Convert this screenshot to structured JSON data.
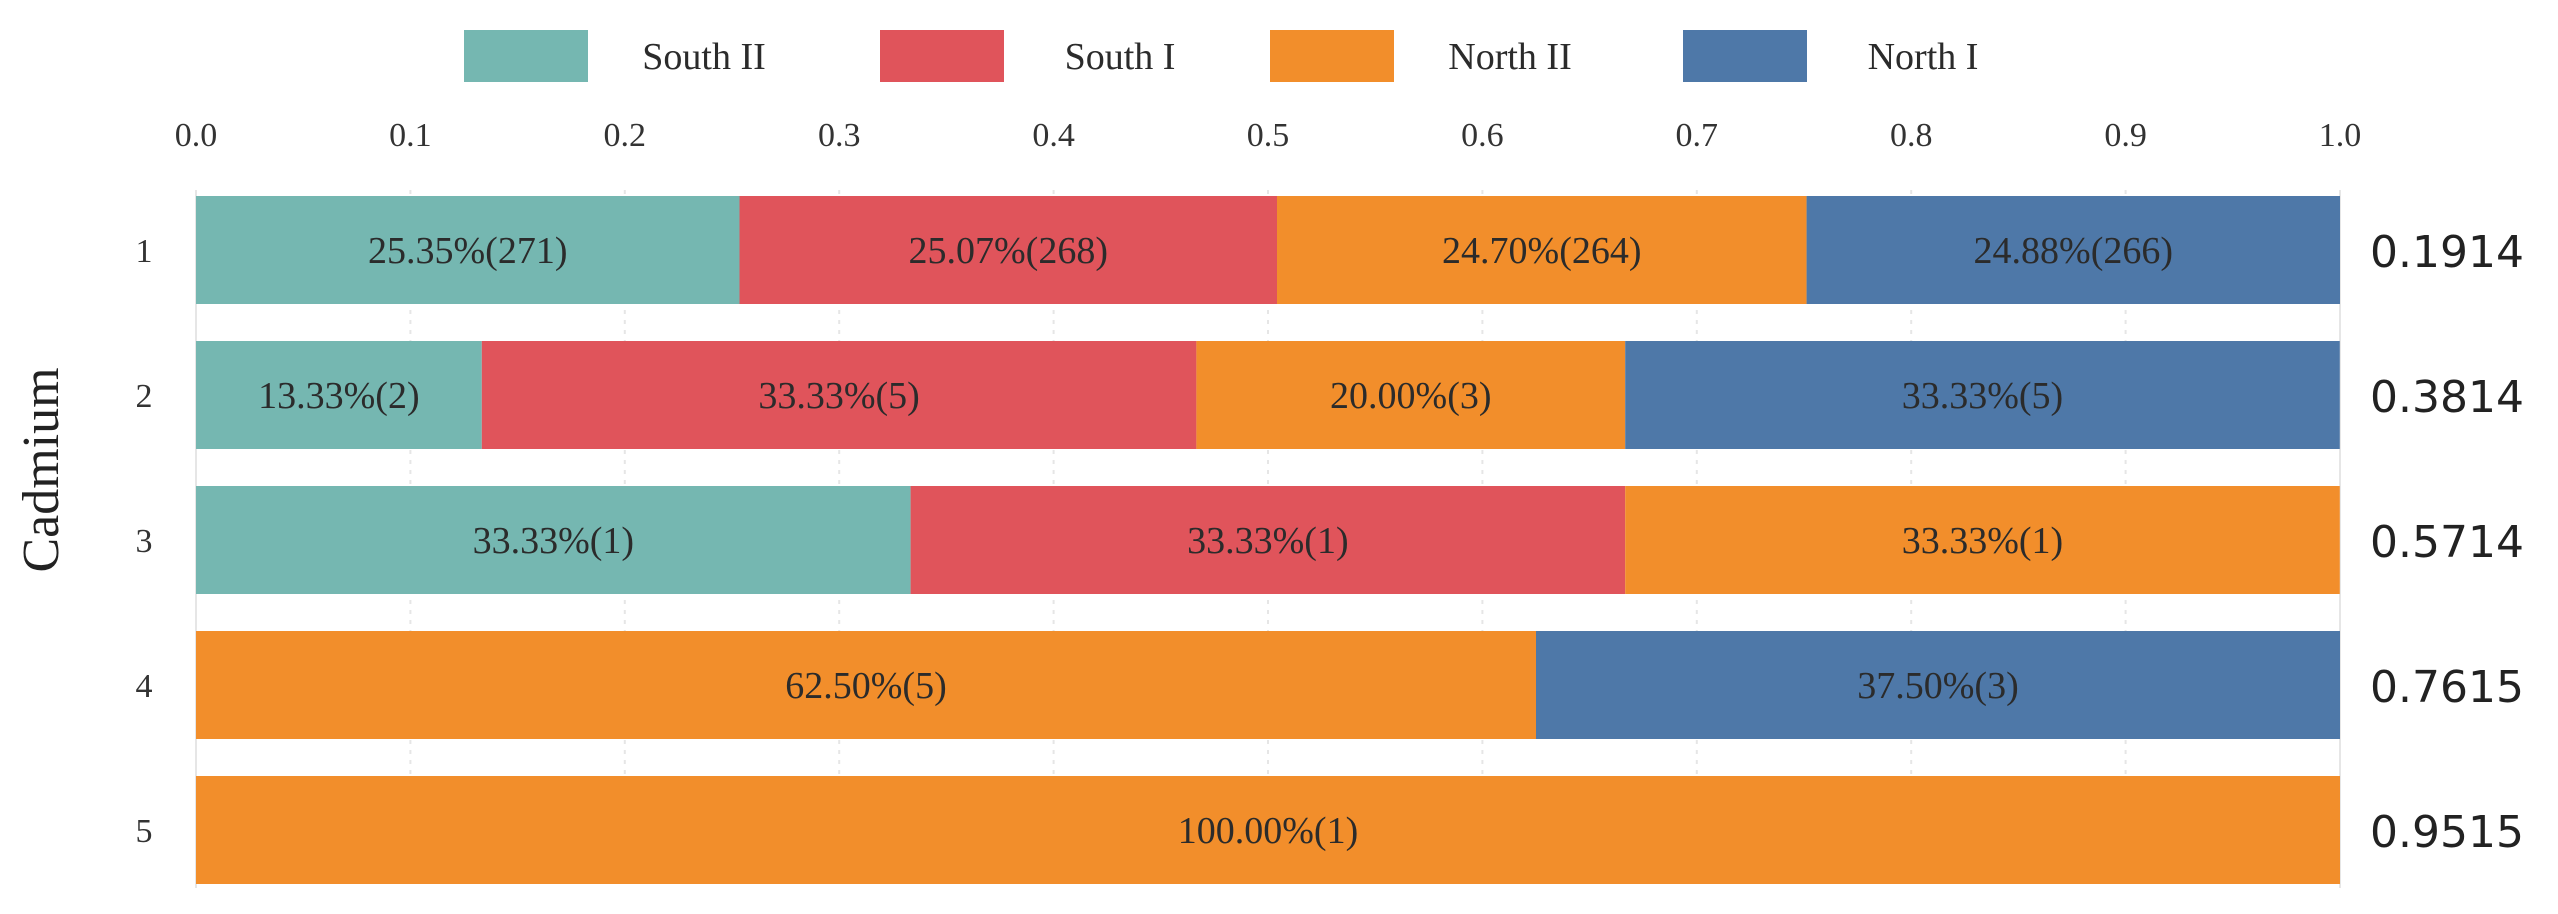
{
  "chart_data": {
    "type": "bar",
    "orientation": "horizontal",
    "stacked": true,
    "ylabel": "Cadmium",
    "categories": [
      "1",
      "2",
      "3",
      "4",
      "5"
    ],
    "x_ticks": [
      "0.0",
      "0.1",
      "0.2",
      "0.3",
      "0.4",
      "0.5",
      "0.6",
      "0.7",
      "0.8",
      "0.9",
      "1.0"
    ],
    "xlim": [
      0,
      1
    ],
    "grid": true,
    "legend_position": "top",
    "series": [
      {
        "name": "South II",
        "color": "#75b7b1",
        "values": [
          0.2535,
          0.1333,
          0.3333,
          0,
          0
        ],
        "labels": [
          "25.35%(271)",
          "13.33%(2)",
          "33.33%(1)",
          "",
          ""
        ]
      },
      {
        "name": "South I",
        "color": "#e0545b",
        "values": [
          0.2507,
          0.3333,
          0.3333,
          0,
          0
        ],
        "labels": [
          "25.07%(268)",
          "33.33%(5)",
          "33.33%(1)",
          "",
          ""
        ]
      },
      {
        "name": "North II",
        "color": "#f28e2b",
        "values": [
          0.247,
          0.2,
          0.3333,
          0.625,
          1.0
        ],
        "labels": [
          "24.70%(264)",
          "20.00%(3)",
          "33.33%(1)",
          "62.50%(5)",
          "100.00%(1)"
        ]
      },
      {
        "name": "North I",
        "color": "#4e78a8",
        "values": [
          0.2488,
          0.3333,
          0,
          0.375,
          0
        ],
        "labels": [
          "24.88%(266)",
          "33.33%(5)",
          "",
          "37.50%(3)",
          ""
        ]
      }
    ],
    "right_labels": [
      "0.1914",
      "0.3814",
      "0.5714",
      "0.7615",
      "0.9515"
    ]
  }
}
